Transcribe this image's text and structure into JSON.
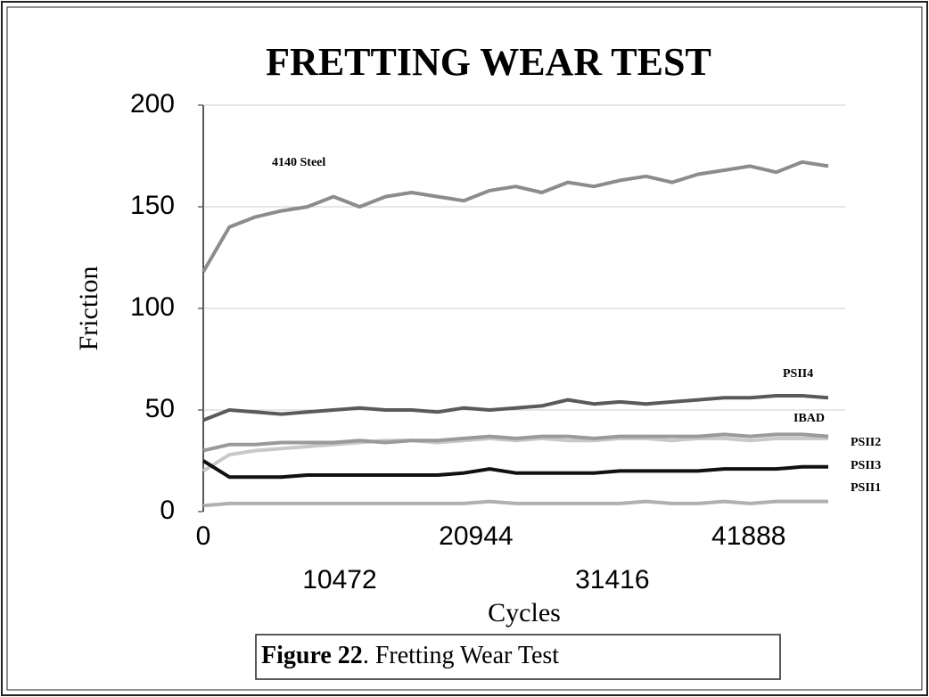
{
  "chart_data": {
    "type": "line",
    "title": "FRETTING WEAR TEST",
    "x_label": "Cycles",
    "y_label": "Friction",
    "caption_label": "Figure 22",
    "caption_text": ". Fretting Wear Test",
    "x": [
      0,
      2000,
      4000,
      6000,
      8000,
      10000,
      12000,
      14000,
      16000,
      18000,
      20000,
      22000,
      24000,
      26000,
      28000,
      30000,
      32000,
      34000,
      36000,
      38000,
      40000,
      42000,
      44000,
      46000,
      48000
    ],
    "series": [
      {
        "name": "4140 Steel",
        "color": "#8c8c8c",
        "values": [
          118,
          140,
          145,
          148,
          150,
          155,
          150,
          155,
          157,
          155,
          153,
          158,
          160,
          157,
          162,
          160,
          163,
          165,
          162,
          166,
          168,
          170,
          167,
          172,
          170
        ]
      },
      {
        "name": "PSII4",
        "color": "#5a5a5a",
        "values": [
          45,
          50,
          49,
          48,
          49,
          50,
          51,
          50,
          50,
          49,
          51,
          50,
          51,
          52,
          55,
          53,
          54,
          53,
          54,
          55,
          56,
          56,
          57,
          57,
          56
        ]
      },
      {
        "name": "IBAD",
        "color": "#c8c8c8",
        "values": [
          20,
          28,
          30,
          31,
          32,
          33,
          34,
          35,
          35,
          34,
          35,
          36,
          35,
          36,
          35,
          35,
          36,
          36,
          35,
          36,
          36,
          35,
          36,
          36,
          36
        ]
      },
      {
        "name": "PSII2",
        "color": "#9a9a9a",
        "values": [
          30,
          33,
          33,
          34,
          34,
          34,
          35,
          34,
          35,
          35,
          36,
          37,
          36,
          37,
          37,
          36,
          37,
          37,
          37,
          37,
          38,
          37,
          38,
          38,
          37
        ]
      },
      {
        "name": "PSII3",
        "color": "#111111",
        "values": [
          25,
          17,
          17,
          17,
          18,
          18,
          18,
          18,
          18,
          18,
          19,
          21,
          19,
          19,
          19,
          19,
          20,
          20,
          20,
          20,
          21,
          21,
          21,
          22,
          22
        ]
      },
      {
        "name": "PSII1",
        "color": "#b0b0b0",
        "values": [
          3,
          4,
          4,
          4,
          4,
          4,
          4,
          4,
          4,
          4,
          4,
          5,
          4,
          4,
          4,
          4,
          4,
          5,
          4,
          4,
          5,
          4,
          5,
          5,
          5
        ]
      }
    ],
    "xlim": [
      0,
      49300
    ],
    "xticks": [
      0,
      10472,
      20944,
      31416,
      41888
    ],
    "ylim": [
      0,
      200
    ],
    "yticks": [
      0,
      50,
      100,
      150,
      200
    ],
    "grid": true
  }
}
